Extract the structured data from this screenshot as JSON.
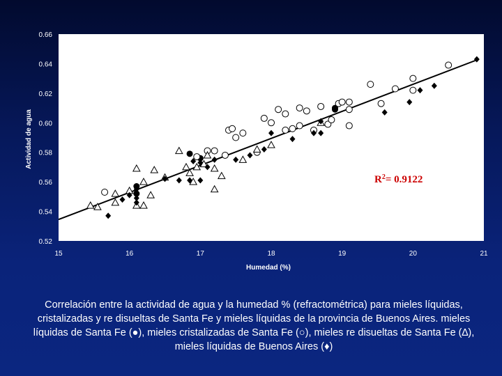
{
  "chart_data": {
    "type": "scatter",
    "xlabel": "Humedad (%)",
    "ylabel": "Actividad de agua",
    "xlim": [
      15,
      21
    ],
    "ylim": [
      0.52,
      0.66
    ],
    "xticks": [
      "15",
      "16",
      "17",
      "18",
      "19",
      "20",
      "21"
    ],
    "yticks": [
      "0.52",
      "0.54",
      "0.56",
      "0.58",
      "0.60",
      "0.62",
      "0.64",
      "0.66"
    ],
    "grid": false,
    "annotation": "R2= 0.9122",
    "trendline": {
      "x": [
        15.0,
        20.9
      ],
      "y": [
        0.5345,
        0.6425
      ]
    },
    "series": [
      {
        "marker": "filled-circle",
        "points": [
          [
            16.1,
            0.557
          ],
          [
            16.1,
            0.552
          ],
          [
            16.85,
            0.579
          ],
          [
            17.0,
            0.576
          ],
          [
            18.9,
            0.61
          ],
          [
            18.9,
            0.609
          ]
        ]
      },
      {
        "marker": "open-circle",
        "points": [
          [
            15.65,
            0.553
          ],
          [
            16.95,
            0.577
          ],
          [
            17.1,
            0.581
          ],
          [
            17.2,
            0.581
          ],
          [
            17.35,
            0.578
          ],
          [
            17.4,
            0.595
          ],
          [
            17.45,
            0.596
          ],
          [
            17.5,
            0.59
          ],
          [
            17.6,
            0.593
          ],
          [
            17.8,
            0.58
          ],
          [
            17.9,
            0.603
          ],
          [
            18.0,
            0.6
          ],
          [
            18.1,
            0.609
          ],
          [
            18.2,
            0.606
          ],
          [
            18.2,
            0.595
          ],
          [
            18.3,
            0.596
          ],
          [
            18.4,
            0.598
          ],
          [
            18.4,
            0.61
          ],
          [
            18.5,
            0.608
          ],
          [
            18.6,
            0.595
          ],
          [
            18.7,
            0.611
          ],
          [
            18.8,
            0.599
          ],
          [
            18.85,
            0.602
          ],
          [
            18.95,
            0.613
          ],
          [
            19.0,
            0.614
          ],
          [
            19.1,
            0.614
          ],
          [
            19.1,
            0.609
          ],
          [
            19.1,
            0.598
          ],
          [
            19.4,
            0.626
          ],
          [
            19.55,
            0.613
          ],
          [
            19.75,
            0.623
          ],
          [
            20.0,
            0.63
          ],
          [
            20.0,
            0.622
          ],
          [
            20.5,
            0.639
          ]
        ]
      },
      {
        "marker": "open-triangle",
        "points": [
          [
            15.45,
            0.544
          ],
          [
            15.55,
            0.543
          ],
          [
            15.8,
            0.546
          ],
          [
            15.8,
            0.552
          ],
          [
            16.0,
            0.554
          ],
          [
            16.1,
            0.569
          ],
          [
            16.1,
            0.544
          ],
          [
            16.2,
            0.544
          ],
          [
            16.2,
            0.56
          ],
          [
            16.3,
            0.551
          ],
          [
            16.35,
            0.568
          ],
          [
            16.5,
            0.563
          ],
          [
            16.7,
            0.581
          ],
          [
            16.8,
            0.57
          ],
          [
            16.85,
            0.566
          ],
          [
            16.9,
            0.56
          ],
          [
            16.95,
            0.57
          ],
          [
            17.05,
            0.572
          ],
          [
            17.1,
            0.578
          ],
          [
            17.2,
            0.569
          ],
          [
            17.2,
            0.555
          ],
          [
            17.3,
            0.564
          ],
          [
            17.6,
            0.575
          ],
          [
            17.8,
            0.582
          ],
          [
            18.0,
            0.585
          ],
          [
            18.7,
            0.6
          ]
        ]
      },
      {
        "marker": "filled-diamond",
        "points": [
          [
            15.7,
            0.537
          ],
          [
            15.9,
            0.548
          ],
          [
            16.0,
            0.551
          ],
          [
            16.1,
            0.555
          ],
          [
            16.1,
            0.549
          ],
          [
            16.1,
            0.546
          ],
          [
            16.5,
            0.562
          ],
          [
            16.7,
            0.561
          ],
          [
            16.85,
            0.561
          ],
          [
            16.9,
            0.574
          ],
          [
            17.0,
            0.573
          ],
          [
            17.0,
            0.561
          ],
          [
            17.1,
            0.57
          ],
          [
            17.2,
            0.575
          ],
          [
            17.5,
            0.575
          ],
          [
            17.7,
            0.578
          ],
          [
            17.9,
            0.582
          ],
          [
            18.0,
            0.593
          ],
          [
            18.3,
            0.589
          ],
          [
            18.6,
            0.593
          ],
          [
            18.7,
            0.593
          ],
          [
            18.7,
            0.601
          ],
          [
            18.9,
            0.609
          ],
          [
            19.6,
            0.607
          ],
          [
            19.95,
            0.614
          ],
          [
            20.1,
            0.622
          ],
          [
            20.3,
            0.625
          ],
          [
            20.9,
            0.643
          ]
        ]
      }
    ]
  },
  "caption": "Correlación entre la actividad de agua y la humedad % (refractométrica) para mieles líquidas, cristalizadas y re disueltas de Santa Fe y mieles líquidas de la provincia de Buenos Aires. mieles líquidas de Santa Fe (●), mieles cristalizadas de Santa Fe (○), mieles re disueltas de Santa Fe (∆), mieles líquidas de Buenos Aires (♦)"
}
